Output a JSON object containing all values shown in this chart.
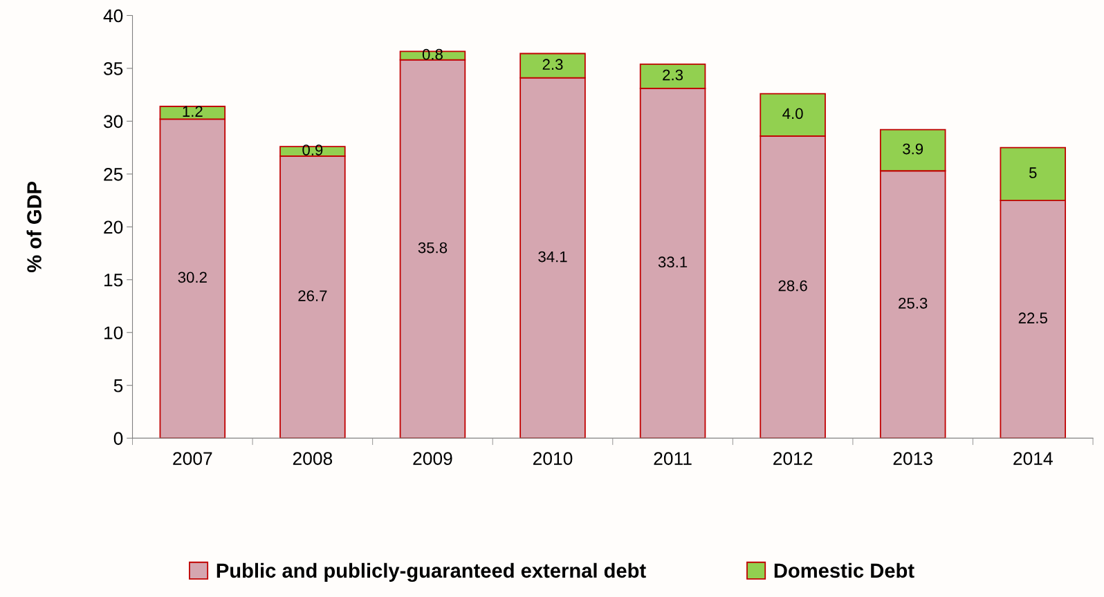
{
  "chart_data": {
    "type": "bar",
    "stacked": true,
    "ylabel": "% of GDP",
    "categories": [
      "2007",
      "2008",
      "2009",
      "2010",
      "2011",
      "2012",
      "2013",
      "2014"
    ],
    "series": [
      {
        "name": "Public and publicly-guaranteed external debt",
        "color": "#d5a6b0",
        "values": [
          30.2,
          26.7,
          35.8,
          34.1,
          33.1,
          28.6,
          25.3,
          22.5
        ],
        "value_labels": [
          "30.2",
          "26.7",
          "35.8",
          "34.1",
          "33.1",
          "28.6",
          "25.3",
          "22.5"
        ]
      },
      {
        "name": "Domestic Debt",
        "color": "#92d050",
        "values": [
          1.2,
          0.9,
          0.8,
          2.3,
          2.3,
          4.0,
          3.9,
          5
        ],
        "value_labels": [
          "1.2",
          "0.9",
          "0.8",
          "2.3",
          "2.3",
          "4.0",
          "3.9",
          "5"
        ]
      }
    ],
    "ylim": [
      0,
      40
    ],
    "yticks": [
      0,
      5,
      10,
      15,
      20,
      25,
      30,
      35,
      40
    ],
    "grid": false,
    "legend": "bottom"
  }
}
